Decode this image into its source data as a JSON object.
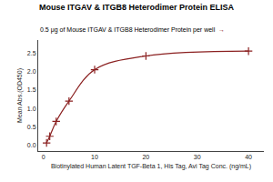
{
  "chart_data": {
    "type": "line",
    "title": "Mouse ITGAV & ITGB8 Heterodimer Protein ELISA",
    "subtitle": "0.5 μg of Mouse ITGAV & ITGB8 Heterodimer Protein per well",
    "annotations": [
      {
        "text": "→",
        "color": "#8B2020"
      }
    ],
    "xlabel": "Biotinylated Human Latent TGF-Beta 1, His Tag, Avi Tag Conc. (ng/mL)",
    "ylabel": "Mean Abs.(OD450)",
    "x": [
      0.625,
      1.25,
      2.5,
      5,
      10,
      20,
      40
    ],
    "values": [
      0.07,
      0.25,
      0.65,
      1.2,
      2.05,
      2.42,
      2.55
    ],
    "color": "#8B2020",
    "marker": "cross",
    "line_style": "solid",
    "xlim": [
      -1,
      43
    ],
    "ylim": [
      -0.15,
      2.85
    ],
    "xticks": [
      0,
      10,
      20,
      30,
      40
    ],
    "yticks": [
      {
        "value": 0.0,
        "label": "0.0"
      },
      0.5,
      {
        "value": 1.0,
        "label": "1.0"
      },
      1.5,
      {
        "value": 2.0,
        "label": "2.0"
      },
      2.5
    ],
    "grid": false
  }
}
